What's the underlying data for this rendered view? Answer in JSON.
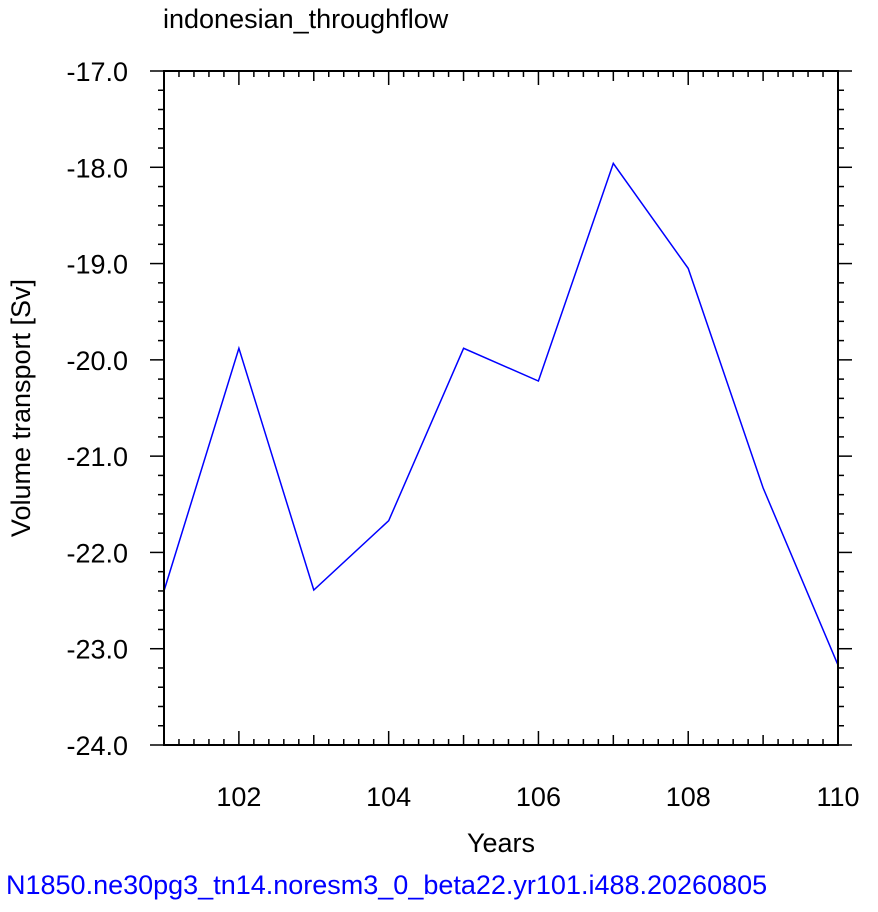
{
  "chart_data": {
    "type": "line",
    "title": "indonesian_throughflow",
    "xlabel": "Years",
    "ylabel": "Volume transport [Sv]",
    "xlim": [
      101,
      110
    ],
    "ylim": [
      -24.0,
      -17.0
    ],
    "x_ticks": [
      "102",
      "104",
      "106",
      "108",
      "110"
    ],
    "y_ticks": [
      "-17.0",
      "-18.0",
      "-19.0",
      "-20.0",
      "-21.0",
      "-22.0",
      "-23.0",
      "-24.0"
    ],
    "grid": false,
    "series": [
      {
        "color": "#0000ff",
        "x": [
          101,
          102,
          103,
          104,
          105,
          106,
          107,
          108,
          109,
          110
        ],
        "y": [
          -22.4,
          -19.88,
          -22.39,
          -21.67,
          -19.88,
          -20.22,
          -17.96,
          -19.05,
          -21.33,
          -23.17
        ]
      }
    ]
  },
  "footer_text": "N1850.ne30pg3_tn14.noresm3_0_beta22.yr101.i488.20260805"
}
